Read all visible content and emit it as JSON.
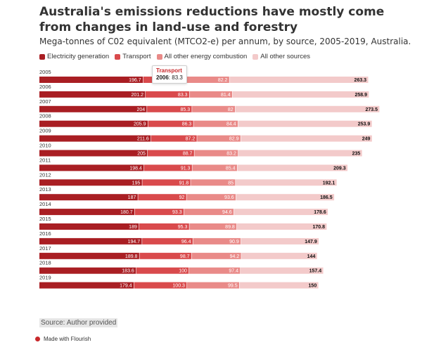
{
  "title": "Australia's emissions reductions have mostly come from changes in land-use and forestry",
  "subtitle": "Mega-tonnes of C02 equivalent (MTCO2-e) per annum, by source, 2005-2019, Australia.",
  "source": "Source: Author provided",
  "footer": "Made with Flourish",
  "tooltip": {
    "series": "Transport",
    "year": "2006",
    "sep": ":",
    "value": "83.3"
  },
  "chart_data": {
    "type": "bar",
    "orientation": "horizontal",
    "stacked": true,
    "categories": [
      "2005",
      "2006",
      "2007",
      "2008",
      "2009",
      "2010",
      "2011",
      "2012",
      "2013",
      "2014",
      "2015",
      "2016",
      "2017",
      "2018",
      "2019"
    ],
    "series": [
      {
        "name": "Electricity generation",
        "color": "#a91e23",
        "values": [
          196.7,
          201.2,
          204,
          205.9,
          211.6,
          205,
          198.4,
          195,
          187,
          180.7,
          189,
          194.7,
          189.8,
          183.6,
          179.4
        ]
      },
      {
        "name": "Transport",
        "color": "#d94a4c",
        "values": [
          81.4,
          83.3,
          85.3,
          86.3,
          87.2,
          88.7,
          91.3,
          91.8,
          92,
          93.3,
          95.3,
          96.4,
          98.7,
          100,
          100.3
        ]
      },
      {
        "name": "All other energy combustion",
        "color": "#e98a88",
        "values": [
          82.2,
          81.4,
          82,
          84.4,
          82.9,
          83.2,
          85.4,
          85,
          93.6,
          94.6,
          89.8,
          90.9,
          94.2,
          97.4,
          99.5
        ]
      },
      {
        "name": "All other sources",
        "color": "#f3caca",
        "values": [
          263.3,
          258.9,
          273.5,
          253.9,
          249,
          235,
          209.3,
          192.1,
          186.5,
          178.6,
          170.8,
          147.9,
          144,
          157.4,
          150
        ]
      }
    ],
    "legend_position": "top-left",
    "grid": false,
    "data_labels": true
  }
}
